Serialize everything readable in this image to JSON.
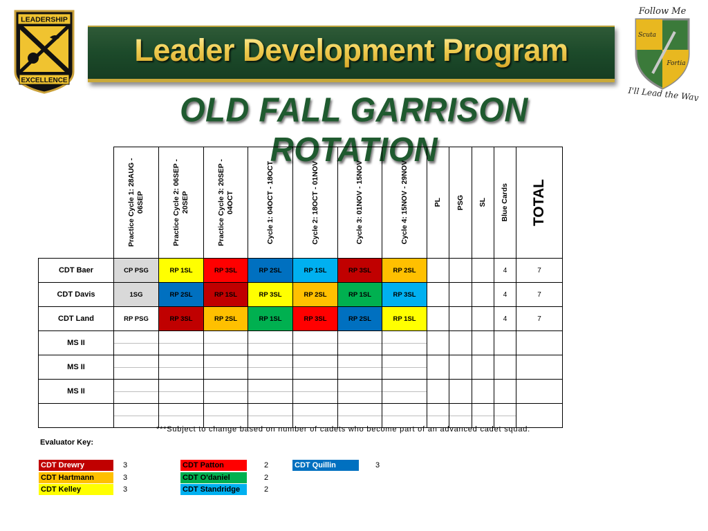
{
  "banner": {
    "title": "Leader Development Program",
    "subtitle": "OLD FALL GARRISON ROTATION"
  },
  "logos": {
    "rotc": {
      "top_text": "LEADERSHIP",
      "bottom_text": "EXCELLENCE"
    },
    "crest": {
      "top_text": "Follow Me",
      "left_text": "Scuta",
      "right_text": "Fortia",
      "bottom_text": "I'll Lead the Way"
    }
  },
  "colors": {
    "darkred": "#c00000",
    "red": "#ff0000",
    "orange": "#ffc000",
    "yellow": "#ffff00",
    "green": "#00b050",
    "blue": "#0070c0",
    "lightblue": "#00b0f0",
    "grey": "#d9d9d9",
    "none": "#ffffff"
  },
  "columns": [
    "Practice Cycle 1: 28AUG - 06SEP",
    "Practice Cycle 2: 06SEP - 20SEP",
    "Practice Cycle 3: 20SEP - 04OCT",
    "Cycle 1: 04OCT - 18OCT",
    "Cycle 2: 18OCT - 01NOV",
    "Cycle 3: 01NOV - 15NOV",
    "Cycle 4: 15NOV - 29NOV",
    "PL",
    "PSG",
    "SL",
    "Blue Cards",
    "TOTAL"
  ],
  "rows": [
    {
      "name": "CDT Baer",
      "cells": [
        {
          "text": "CP PSG",
          "color": "grey"
        },
        {
          "text": "RP 1SL",
          "color": "yellow"
        },
        {
          "text": "RP 3SL",
          "color": "red"
        },
        {
          "text": "RP 2SL",
          "color": "blue"
        },
        {
          "text": "RP 1SL",
          "color": "lightblue"
        },
        {
          "text": "RP 3SL",
          "color": "darkred"
        },
        {
          "text": "RP 2SL",
          "color": "orange"
        }
      ],
      "pl": "",
      "psg": "",
      "sl": "",
      "blue_cards": "4",
      "total": "7"
    },
    {
      "name": "CDT Davis",
      "cells": [
        {
          "text": "1SG",
          "color": "grey"
        },
        {
          "text": "RP 2SL",
          "color": "blue"
        },
        {
          "text": "RP 1SL",
          "color": "darkred"
        },
        {
          "text": "RP 3SL",
          "color": "yellow"
        },
        {
          "text": "RP 2SL",
          "color": "orange"
        },
        {
          "text": "RP 1SL",
          "color": "green"
        },
        {
          "text": "RP 3SL",
          "color": "lightblue"
        }
      ],
      "pl": "",
      "psg": "",
      "sl": "",
      "blue_cards": "4",
      "total": "7"
    },
    {
      "name": "CDT Land",
      "cells": [
        {
          "text": "RP PSG",
          "color": "none"
        },
        {
          "text": "RP 3SL",
          "color": "darkred"
        },
        {
          "text": "RP 2SL",
          "color": "orange"
        },
        {
          "text": "RP 1SL",
          "color": "green"
        },
        {
          "text": "RP 3SL",
          "color": "red"
        },
        {
          "text": "RP 2SL",
          "color": "blue"
        },
        {
          "text": "RP 1SL",
          "color": "yellow"
        }
      ],
      "pl": "",
      "psg": "",
      "sl": "",
      "blue_cards": "4",
      "total": "7"
    },
    {
      "name": "MS II",
      "empty": true
    },
    {
      "name": "MS II",
      "empty": true
    },
    {
      "name": "MS II",
      "empty": true
    },
    {
      "name": "",
      "empty": true
    }
  ],
  "note": "***Subject to change based on number of cadets who become part of an advanced cadet squad.",
  "evaluator_key": {
    "title": "Evaluator Key:",
    "items": [
      {
        "name": "CDT Drewry",
        "count": "3",
        "color": "darkred",
        "text_color": "#ffffff"
      },
      {
        "name": "CDT Hartmann",
        "count": "3",
        "color": "orange",
        "text_color": "#000000"
      },
      {
        "name": "CDT Kelley",
        "count": "3",
        "color": "yellow",
        "text_color": "#000000"
      },
      {
        "name": "CDT Patton",
        "count": "2",
        "color": "red",
        "text_color": "#000000"
      },
      {
        "name": "CDT O'daniel",
        "count": "2",
        "color": "green",
        "text_color": "#000000"
      },
      {
        "name": "CDT Standridge",
        "count": "2",
        "color": "lightblue",
        "text_color": "#000000"
      },
      {
        "name": "CDT Quillin",
        "count": "3",
        "color": "blue",
        "text_color": "#ffffff"
      }
    ]
  }
}
